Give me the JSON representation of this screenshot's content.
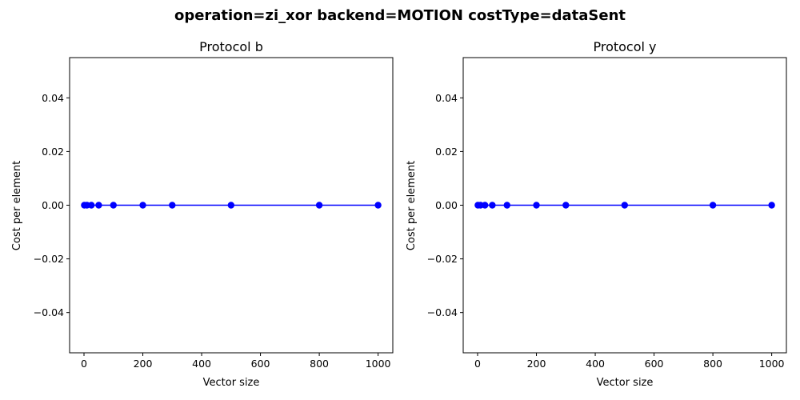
{
  "figure": {
    "suptitle": "operation=zi_xor backend=MOTION costType=dataSent"
  },
  "chart_data": [
    {
      "type": "line",
      "title": "Protocol b",
      "xlabel": "Vector size",
      "ylabel": "Cost per element",
      "x": [
        1,
        10,
        25,
        50,
        100,
        200,
        300,
        500,
        800,
        1000
      ],
      "series": [
        {
          "values": [
            0,
            0,
            0,
            0,
            0,
            0,
            0,
            0,
            0,
            0
          ],
          "color": "#0000ff",
          "marker": "circle"
        }
      ],
      "xlim": [
        -49,
        1050
      ],
      "ylim": [
        -0.055,
        0.055
      ],
      "xticks": [
        0,
        200,
        400,
        600,
        800,
        1000
      ],
      "xtick_labels": [
        "0",
        "200",
        "400",
        "600",
        "800",
        "1000"
      ],
      "yticks": [
        -0.04,
        -0.02,
        0.0,
        0.02,
        0.04
      ],
      "ytick_labels": [
        "−0.04",
        "−0.02",
        "0.00",
        "0.02",
        "0.04"
      ],
      "grid": false
    },
    {
      "type": "line",
      "title": "Protocol y",
      "xlabel": "Vector size",
      "ylabel": "Cost per element",
      "x": [
        1,
        10,
        25,
        50,
        100,
        200,
        300,
        500,
        800,
        1000
      ],
      "series": [
        {
          "values": [
            0,
            0,
            0,
            0,
            0,
            0,
            0,
            0,
            0,
            0
          ],
          "color": "#0000ff",
          "marker": "circle"
        }
      ],
      "xlim": [
        -49,
        1050
      ],
      "ylim": [
        -0.055,
        0.055
      ],
      "xticks": [
        0,
        200,
        400,
        600,
        800,
        1000
      ],
      "xtick_labels": [
        "0",
        "200",
        "400",
        "600",
        "800",
        "1000"
      ],
      "yticks": [
        -0.04,
        -0.02,
        0.0,
        0.02,
        0.04
      ],
      "ytick_labels": [
        "−0.04",
        "−0.02",
        "0.00",
        "0.02",
        "0.04"
      ],
      "grid": false
    }
  ]
}
